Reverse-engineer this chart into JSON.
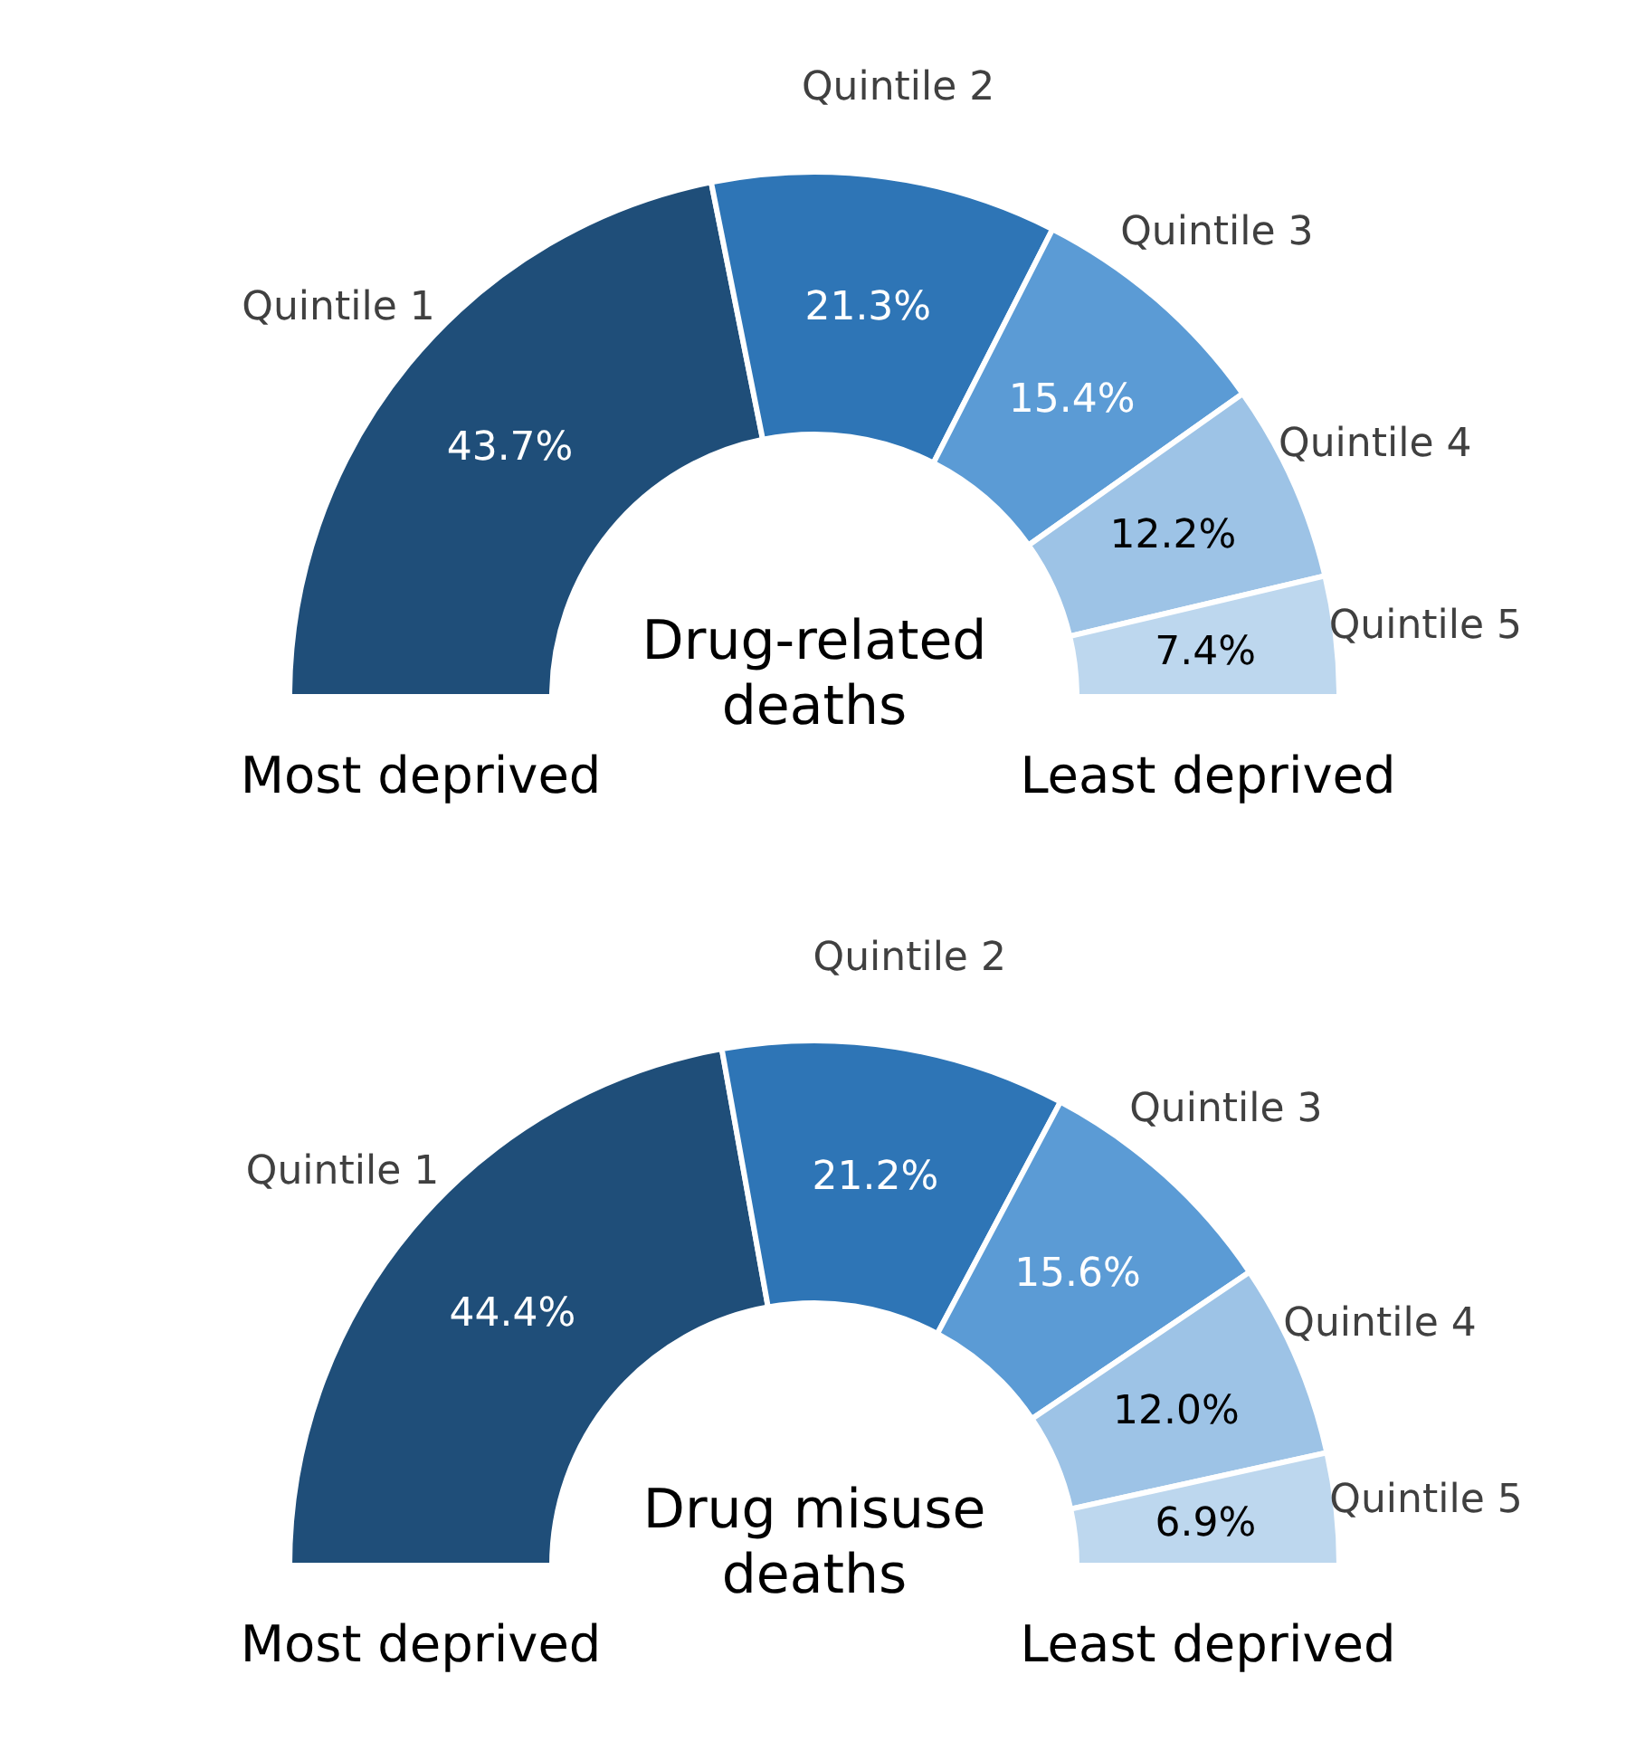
{
  "chart_data": [
    {
      "type": "donut",
      "title": "Drug-related deaths",
      "categories": [
        "Quintile 1",
        "Quintile 2",
        "Quintile 3",
        "Quintile 4",
        "Quintile 5"
      ],
      "values": [
        43.7,
        21.3,
        15.4,
        12.2,
        7.4
      ],
      "value_labels": [
        "43.7%",
        "21.3%",
        "15.4%",
        "12.2%",
        "7.4%"
      ],
      "colors": [
        "#1f4e79",
        "#2e75b6",
        "#5b9bd5",
        "#9dc3e6",
        "#bdd7ee"
      ],
      "annotations": [
        "Most deprived",
        "Least deprived"
      ]
    },
    {
      "type": "donut",
      "title": "Drug misuse deaths",
      "categories": [
        "Quintile 1",
        "Quintile 2",
        "Quintile 3",
        "Quintile 4",
        "Quintile 5"
      ],
      "values": [
        44.4,
        21.2,
        15.6,
        12.0,
        6.9
      ],
      "value_labels": [
        "44.4%",
        "21.2%",
        "15.6%",
        "12.0%",
        "6.9%"
      ],
      "colors": [
        "#1f4e79",
        "#2e75b6",
        "#5b9bd5",
        "#9dc3e6",
        "#bdd7ee"
      ],
      "annotations": [
        "Most deprived",
        "Least deprived"
      ]
    }
  ]
}
